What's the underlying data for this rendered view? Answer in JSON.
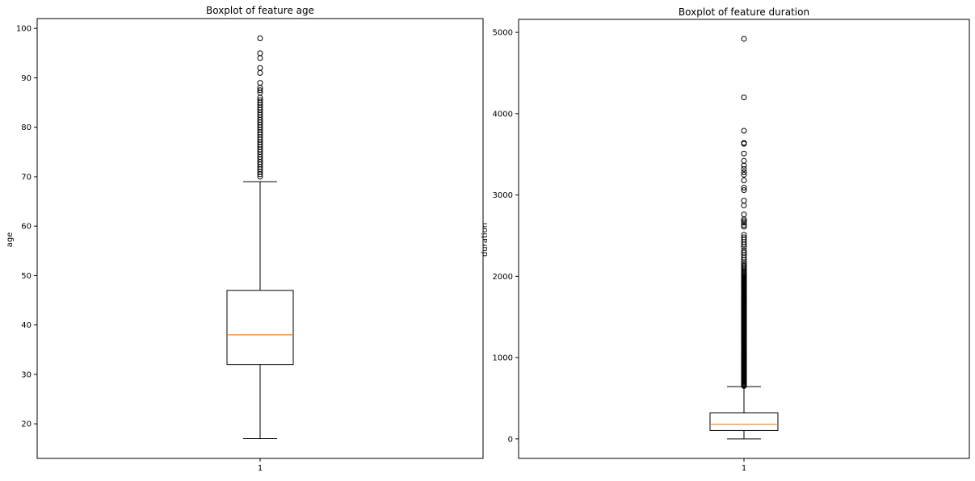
{
  "chart_data": [
    {
      "type": "boxplot",
      "title": "Boxplot of feature age",
      "xlabel": "",
      "ylabel": "age",
      "categories": [
        "1"
      ],
      "ylim": [
        13,
        102
      ],
      "yticks": [
        20,
        30,
        40,
        50,
        60,
        70,
        80,
        90,
        100
      ],
      "grid": false,
      "box": {
        "whisker_low": 17,
        "q1": 32,
        "median": 38,
        "q3": 47,
        "whisker_high": 69,
        "outliers": [
          70,
          70.5,
          71,
          71.5,
          72,
          72.5,
          73,
          73.5,
          74,
          74.5,
          75,
          75.5,
          76,
          76.5,
          77,
          77.5,
          78,
          78.5,
          79,
          79.5,
          80,
          80.5,
          81,
          81.5,
          82,
          82.5,
          83,
          83.5,
          84,
          84.5,
          85,
          85.5,
          86,
          87,
          87.5,
          88,
          89,
          91,
          92,
          94,
          95,
          98
        ]
      },
      "colors": {
        "box": "#000000",
        "median": "#ff7f0e"
      }
    },
    {
      "type": "boxplot",
      "title": "Boxplot of feature duration",
      "xlabel": "",
      "ylabel": "duration",
      "categories": [
        "1"
      ],
      "ylim": [
        -240,
        5160
      ],
      "yticks": [
        0,
        1000,
        2000,
        3000,
        4000,
        5000
      ],
      "grid": false,
      "box": {
        "whisker_low": 0,
        "q1": 103,
        "median": 180,
        "q3": 319,
        "whisker_high": 643,
        "outliers": [
          650,
          660,
          670,
          680,
          690,
          700,
          710,
          720,
          730,
          740,
          750,
          760,
          770,
          780,
          790,
          800,
          810,
          820,
          830,
          840,
          850,
          860,
          870,
          880,
          890,
          900,
          910,
          920,
          930,
          940,
          950,
          960,
          970,
          980,
          990,
          1000,
          1010,
          1020,
          1030,
          1040,
          1050,
          1060,
          1070,
          1080,
          1090,
          1100,
          1110,
          1120,
          1130,
          1140,
          1150,
          1160,
          1170,
          1180,
          1190,
          1200,
          1210,
          1220,
          1230,
          1240,
          1250,
          1260,
          1270,
          1280,
          1290,
          1300,
          1310,
          1320,
          1330,
          1340,
          1350,
          1360,
          1370,
          1380,
          1390,
          1400,
          1410,
          1420,
          1430,
          1440,
          1450,
          1460,
          1470,
          1480,
          1490,
          1500,
          1510,
          1520,
          1530,
          1540,
          1550,
          1560,
          1570,
          1580,
          1590,
          1600,
          1610,
          1620,
          1630,
          1640,
          1650,
          1660,
          1670,
          1680,
          1690,
          1700,
          1710,
          1720,
          1730,
          1740,
          1750,
          1760,
          1770,
          1780,
          1790,
          1800,
          1810,
          1820,
          1830,
          1840,
          1850,
          1860,
          1870,
          1880,
          1890,
          1900,
          1910,
          1920,
          1930,
          1940,
          1950,
          1960,
          1970,
          1980,
          1990,
          2000,
          2015,
          2030,
          2045,
          2060,
          2075,
          2090,
          2110,
          2130,
          2150,
          2170,
          2200,
          2230,
          2260,
          2290,
          2320,
          2360,
          2390,
          2420,
          2450,
          2480,
          2510,
          2610,
          2630,
          2660,
          2680,
          2700,
          2760,
          2870,
          2930,
          3060,
          3090,
          3180,
          3250,
          3280,
          3320,
          3360,
          3420,
          3510,
          3630,
          3640,
          3790,
          4200,
          4920
        ]
      },
      "colors": {
        "box": "#000000",
        "median": "#ff7f0e"
      }
    }
  ]
}
